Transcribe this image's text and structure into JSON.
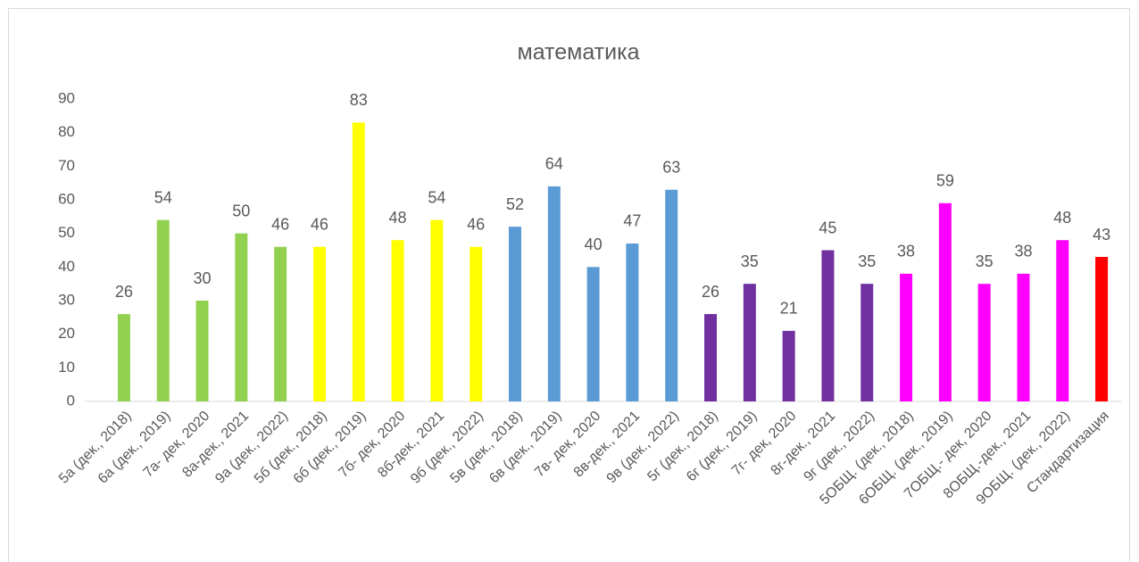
{
  "chart_data": {
    "type": "bar",
    "title": "математика",
    "categories": [
      "5а (дек., 2018)",
      "6а (дек., 2019)",
      "7а- дек, 2020",
      "8а-дек., 2021",
      "9а (дек., 2022)",
      "5б (дек., 2018)",
      "6б (дек., 2019)",
      "7б- дек, 2020",
      "8б-дек., 2021",
      "9б (дек., 2022)",
      "5в (дек., 2018)",
      "6в (дек., 2019)",
      "7в- дек, 2020",
      "8в-дек., 2021",
      "9в (дек., 2022)",
      "5г (дек., 2018)",
      "6г (дек., 2019)",
      "7г- дек, 2020",
      "8г-дек., 2021",
      "9г (дек., 2022)",
      "5ОБЩ. (дек., 2018)",
      "6ОБЩ. (дек., 2019)",
      "7ОБЩ.- дек, 2020",
      "8ОБЩ.-дек., 2021",
      "9ОБЩ. (дек., 2022)",
      "Стандартизация"
    ],
    "values": [
      26,
      54,
      30,
      50,
      46,
      46,
      83,
      48,
      54,
      46,
      52,
      64,
      40,
      47,
      63,
      26,
      35,
      21,
      45,
      35,
      38,
      59,
      35,
      38,
      48,
      43
    ],
    "colors": [
      "#92d050",
      "#92d050",
      "#92d050",
      "#92d050",
      "#92d050",
      "#ffff00",
      "#ffff00",
      "#ffff00",
      "#ffff00",
      "#ffff00",
      "#5b9bd5",
      "#5b9bd5",
      "#5b9bd5",
      "#5b9bd5",
      "#5b9bd5",
      "#7030a0",
      "#7030a0",
      "#7030a0",
      "#7030a0",
      "#7030a0",
      "#ff00ff",
      "#ff00ff",
      "#ff00ff",
      "#ff00ff",
      "#ff00ff",
      "#ff0000"
    ],
    "ylim": [
      0,
      90
    ],
    "yticks": [
      0,
      10,
      20,
      30,
      40,
      50,
      60,
      70,
      80,
      90
    ],
    "grid": false
  }
}
